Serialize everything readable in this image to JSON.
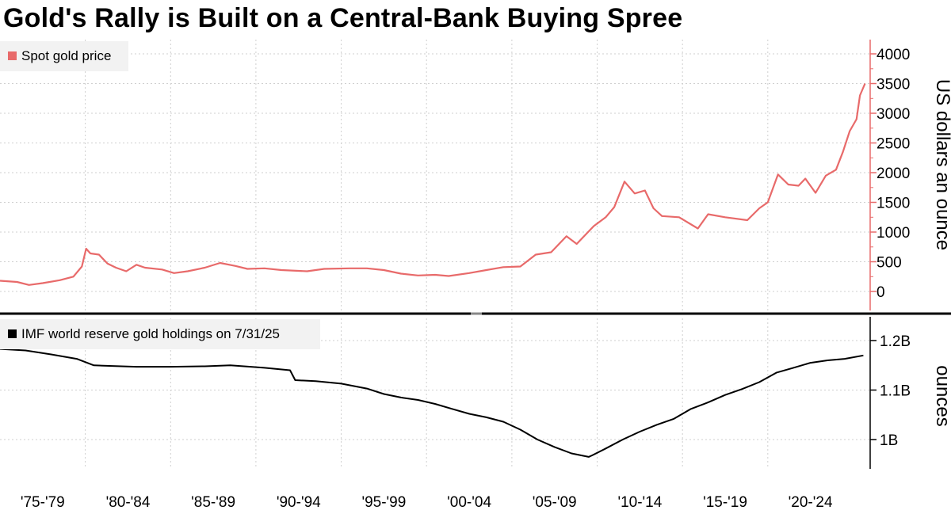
{
  "title": "Gold's Rally is Built on a Central-Bank Buying Spree",
  "colors": {
    "price": "#e86a6a",
    "holdings": "#000000",
    "grid": "#cfcfcf",
    "axis_accent": "#e86a6a"
  },
  "chart_data": [
    {
      "type": "line",
      "ylabel": "US dollars an ounce",
      "ylim": [
        0,
        4000
      ],
      "yticks": [
        "0",
        "500",
        "1000",
        "1500",
        "2000",
        "2500",
        "3000",
        "3500",
        "4000"
      ],
      "grid": true,
      "legend_position": "top-left",
      "x_period_labels": [
        "'75-'79",
        "'80-'84",
        "'85-'89",
        "'90-'94",
        "'95-'99",
        "'00-'04",
        "'05-'09",
        "'10-'14",
        "'15-'19",
        "'20-'24"
      ],
      "series": [
        {
          "name": "Spot gold price",
          "x": [
            1975.0,
            1976.0,
            1976.7,
            1977.5,
            1978.5,
            1979.3,
            1979.8,
            1980.05,
            1980.3,
            1980.8,
            1981.3,
            1981.8,
            1982.4,
            1983.0,
            1983.5,
            1984.5,
            1985.2,
            1986.0,
            1987.0,
            1987.9,
            1988.8,
            1989.5,
            1990.5,
            1991.5,
            1993.0,
            1994.0,
            1995.5,
            1996.5,
            1997.5,
            1998.5,
            1999.5,
            2000.5,
            2001.3,
            2002.5,
            2003.5,
            2004.5,
            2005.5,
            2006.4,
            2007.3,
            2008.2,
            2008.8,
            2009.8,
            2010.5,
            2011.0,
            2011.6,
            2012.2,
            2012.8,
            2013.3,
            2013.8,
            2014.8,
            2015.9,
            2016.5,
            2017.5,
            2018.8,
            2019.5,
            2020.0,
            2020.6,
            2021.2,
            2021.8,
            2022.2,
            2022.8,
            2023.4,
            2024.0,
            2024.4,
            2024.8,
            2025.2,
            2025.4,
            2025.7
          ],
          "values": [
            180,
            160,
            110,
            140,
            190,
            250,
            420,
            720,
            640,
            620,
            470,
            400,
            340,
            450,
            400,
            370,
            310,
            340,
            400,
            480,
            430,
            380,
            390,
            360,
            340,
            380,
            390,
            390,
            360,
            300,
            270,
            280,
            260,
            310,
            360,
            410,
            420,
            620,
            660,
            930,
            800,
            1100,
            1250,
            1420,
            1850,
            1650,
            1700,
            1400,
            1270,
            1250,
            1060,
            1300,
            1250,
            1200,
            1400,
            1500,
            1970,
            1800,
            1780,
            1900,
            1660,
            1950,
            2050,
            2350,
            2700,
            2900,
            3300,
            3500
          ]
        }
      ]
    },
    {
      "type": "line",
      "ylabel": "ounces",
      "ylim": [
        0.95,
        1.23
      ],
      "yticks": [
        "1B",
        "1.1B",
        "1.2B"
      ],
      "grid": true,
      "legend_position": "top-left",
      "series": [
        {
          "name": "IMF world reserve gold holdings on 7/31/25",
          "x": [
            1975.0,
            1976.5,
            1978.0,
            1979.5,
            1980.5,
            1983.0,
            1985.0,
            1987.0,
            1988.5,
            1990.5,
            1992.0,
            1992.3,
            1993.5,
            1995.0,
            1996.5,
            1997.5,
            1998.5,
            1999.5,
            2000.5,
            2001.5,
            2002.5,
            2003.5,
            2004.5,
            2005.5,
            2006.5,
            2007.5,
            2008.5,
            2009.5,
            2009.7,
            2010.5,
            2011.5,
            2012.5,
            2013.5,
            2014.5,
            2015.5,
            2016.5,
            2017.5,
            2018.5,
            2019.5,
            2020.5,
            2021.5,
            2022.5,
            2023.5,
            2024.5,
            2025.6
          ],
          "values": [
            1.183,
            1.18,
            1.172,
            1.163,
            1.15,
            1.147,
            1.147,
            1.148,
            1.15,
            1.145,
            1.14,
            1.12,
            1.118,
            1.113,
            1.103,
            1.092,
            1.085,
            1.08,
            1.072,
            1.062,
            1.052,
            1.045,
            1.036,
            1.02,
            1.0,
            0.985,
            0.972,
            0.965,
            0.968,
            0.982,
            1.0,
            1.016,
            1.03,
            1.042,
            1.062,
            1.075,
            1.09,
            1.102,
            1.116,
            1.135,
            1.145,
            1.155,
            1.16,
            1.163,
            1.17
          ]
        }
      ]
    }
  ]
}
